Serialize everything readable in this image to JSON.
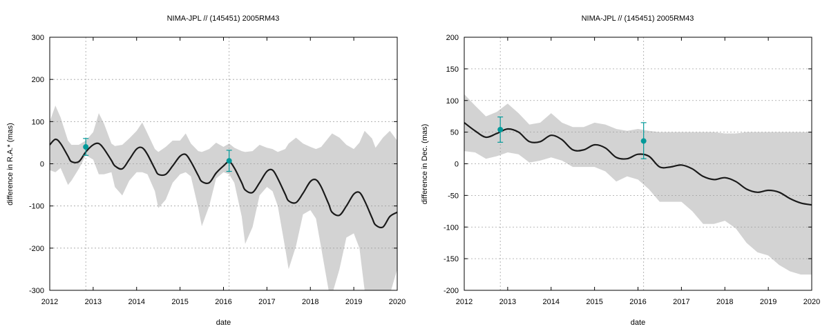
{
  "colors": {
    "uncertainty_band": "#d3d3d3",
    "model_curve": "#1a1a1a",
    "observations": "#009999",
    "grid": "#a0a0a0"
  },
  "chart_data": [
    {
      "type": "line",
      "title": "NIMA-JPL // (145451) 2005RM43",
      "xlabel": "date",
      "ylabel": "difference in R.A.* (mas)",
      "xlim": [
        2012,
        2020
      ],
      "ylim": [
        -300,
        300
      ],
      "x_ticks": [
        "2012",
        "2013",
        "2014",
        "2015",
        "2016",
        "2017",
        "2018",
        "2019",
        "2020"
      ],
      "y_ticks": [
        "-300",
        "-200",
        "-100",
        "0",
        "100",
        "200",
        "300"
      ],
      "grid": true,
      "vertical_markers": [
        2012.83,
        2016.13
      ],
      "series": [
        {
          "kind": "curve",
          "x": [
            2012.0,
            2012.13,
            2012.25,
            2012.42,
            2012.5,
            2012.67,
            2012.83,
            2013.0,
            2013.13,
            2013.25,
            2013.42,
            2013.5,
            2013.67,
            2013.83,
            2014.0,
            2014.13,
            2014.25,
            2014.42,
            2014.5,
            2014.67,
            2014.83,
            2015.0,
            2015.13,
            2015.25,
            2015.42,
            2015.5,
            2015.67,
            2015.83,
            2016.0,
            2016.13,
            2016.25,
            2016.42,
            2016.5,
            2016.67,
            2016.83,
            2017.0,
            2017.13,
            2017.25,
            2017.42,
            2017.5,
            2017.67,
            2017.83,
            2018.0,
            2018.13,
            2018.25,
            2018.42,
            2018.5,
            2018.67,
            2018.83,
            2019.0,
            2019.13,
            2019.25,
            2019.42,
            2019.5,
            2019.67,
            2019.83,
            2020.0
          ],
          "y": [
            45,
            58,
            48,
            18,
            5,
            5,
            28,
            45,
            48,
            35,
            8,
            -5,
            -12,
            10,
            35,
            38,
            22,
            -12,
            -25,
            -25,
            -5,
            18,
            22,
            5,
            -28,
            -42,
            -45,
            -22,
            -5,
            5,
            -10,
            -45,
            -62,
            -68,
            -45,
            -18,
            -15,
            -35,
            -72,
            -88,
            -92,
            -70,
            -42,
            -38,
            -55,
            -95,
            -115,
            -122,
            -100,
            -72,
            -68,
            -88,
            -128,
            -145,
            -150,
            -125,
            -115
          ]
        },
        {
          "kind": "band",
          "x": [
            2012.0,
            2012.13,
            2012.25,
            2012.42,
            2012.5,
            2012.67,
            2012.83,
            2013.0,
            2013.13,
            2013.25,
            2013.42,
            2013.5,
            2013.67,
            2013.83,
            2014.0,
            2014.13,
            2014.25,
            2014.42,
            2014.5,
            2014.67,
            2014.83,
            2015.0,
            2015.13,
            2015.25,
            2015.42,
            2015.5,
            2015.67,
            2015.83,
            2016.0,
            2016.13,
            2016.25,
            2016.42,
            2016.5,
            2016.67,
            2016.83,
            2017.0,
            2017.13,
            2017.25,
            2017.42,
            2017.5,
            2017.67,
            2017.83,
            2018.0,
            2018.13,
            2018.25,
            2018.42,
            2018.5,
            2018.67,
            2018.83,
            2019.0,
            2019.13,
            2019.25,
            2019.42,
            2019.5,
            2019.67,
            2019.83,
            2020.0
          ],
          "upper": [
            100,
            138,
            110,
            55,
            45,
            45,
            55,
            75,
            120,
            95,
            48,
            42,
            45,
            60,
            78,
            98,
            72,
            35,
            28,
            40,
            55,
            55,
            72,
            48,
            30,
            28,
            35,
            50,
            40,
            48,
            38,
            30,
            28,
            30,
            45,
            38,
            35,
            28,
            35,
            48,
            62,
            48,
            40,
            35,
            40,
            62,
            72,
            62,
            45,
            35,
            50,
            78,
            60,
            38,
            62,
            78,
            55
          ],
          "lower": [
            -15,
            -20,
            -10,
            -50,
            -40,
            -12,
            20,
            10,
            -25,
            -25,
            -20,
            -55,
            -75,
            -40,
            -20,
            -20,
            -25,
            -65,
            -105,
            -85,
            -45,
            -25,
            -20,
            -30,
            -105,
            -148,
            -100,
            -35,
            -20,
            -25,
            -45,
            -125,
            -190,
            -150,
            -75,
            -55,
            -65,
            -100,
            -200,
            -250,
            -195,
            -120,
            -110,
            -130,
            -200,
            -300,
            -310,
            -250,
            -175,
            -165,
            -200,
            -300,
            -310,
            -310,
            -310,
            -310,
            -250
          ]
        },
        {
          "kind": "observations",
          "x": [
            2012.83,
            2016.13
          ],
          "y": [
            40,
            7
          ],
          "err_low": [
            20,
            -18
          ],
          "err_high": [
            60,
            32
          ]
        }
      ]
    },
    {
      "type": "line",
      "title": "NIMA-JPL // (145451) 2005RM43",
      "xlabel": "date",
      "ylabel": "difference in Dec. (mas)",
      "xlim": [
        2012,
        2020
      ],
      "ylim": [
        -200,
        200
      ],
      "x_ticks": [
        "2012",
        "2013",
        "2014",
        "2015",
        "2016",
        "2017",
        "2018",
        "2019",
        "2020"
      ],
      "y_ticks": [
        "-200",
        "-150",
        "-100",
        "-50",
        "0",
        "50",
        "100",
        "150",
        "200"
      ],
      "grid": true,
      "vertical_markers": [
        2012.83,
        2016.13
      ],
      "series": [
        {
          "kind": "curve",
          "x": [
            2012.0,
            2012.25,
            2012.5,
            2012.75,
            2013.0,
            2013.25,
            2013.5,
            2013.75,
            2014.0,
            2014.25,
            2014.5,
            2014.75,
            2015.0,
            2015.25,
            2015.5,
            2015.75,
            2016.0,
            2016.25,
            2016.5,
            2016.75,
            2017.0,
            2017.25,
            2017.5,
            2017.75,
            2018.0,
            2018.25,
            2018.5,
            2018.75,
            2019.0,
            2019.25,
            2019.5,
            2019.75,
            2020.0
          ],
          "y": [
            65,
            52,
            42,
            48,
            55,
            50,
            35,
            35,
            45,
            38,
            22,
            22,
            30,
            25,
            10,
            8,
            15,
            12,
            -5,
            -5,
            -2,
            -8,
            -20,
            -25,
            -22,
            -28,
            -40,
            -45,
            -42,
            -45,
            -55,
            -62,
            -65
          ]
        },
        {
          "kind": "band",
          "x": [
            2012.0,
            2012.25,
            2012.5,
            2012.75,
            2013.0,
            2013.25,
            2013.5,
            2013.75,
            2014.0,
            2014.25,
            2014.5,
            2014.75,
            2015.0,
            2015.25,
            2015.5,
            2015.75,
            2016.0,
            2016.25,
            2016.5,
            2016.75,
            2017.0,
            2017.25,
            2017.5,
            2017.75,
            2018.0,
            2018.25,
            2018.5,
            2018.75,
            2019.0,
            2019.25,
            2019.5,
            2019.75,
            2020.0
          ],
          "upper": [
            110,
            92,
            75,
            82,
            95,
            80,
            62,
            65,
            80,
            65,
            58,
            58,
            65,
            62,
            55,
            52,
            55,
            52,
            50,
            50,
            50,
            50,
            50,
            50,
            48,
            48,
            50,
            50,
            50,
            50,
            50,
            50,
            50
          ],
          "lower": [
            20,
            18,
            8,
            12,
            18,
            15,
            2,
            5,
            10,
            5,
            -5,
            -5,
            -5,
            -12,
            -28,
            -20,
            -25,
            -40,
            -60,
            -60,
            -60,
            -75,
            -95,
            -95,
            -90,
            -102,
            -125,
            -140,
            -145,
            -160,
            -170,
            -175,
            -175
          ]
        },
        {
          "kind": "observations",
          "x": [
            2012.83,
            2016.13
          ],
          "y": [
            54,
            36
          ],
          "err_low": [
            34,
            8
          ],
          "err_high": [
            74,
            65
          ]
        }
      ]
    }
  ]
}
